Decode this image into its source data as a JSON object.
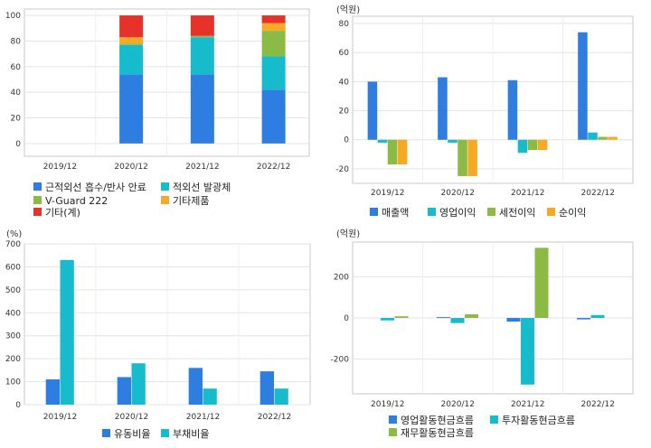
{
  "colors": {
    "blue": "#2e7de0",
    "cyan": "#17bccc",
    "green": "#8bbb45",
    "orange": "#f6a924",
    "red": "#e63228"
  },
  "chart_data": [
    {
      "id": "composition",
      "type": "bar",
      "stacked": true,
      "unit": "",
      "categories": [
        "2019/12",
        "2020/12",
        "2021/12",
        "2022/12"
      ],
      "ylim": [
        -10,
        105
      ],
      "yticks": [
        0,
        20,
        40,
        60,
        80,
        100
      ],
      "grid": true,
      "legend": "bottom",
      "series": [
        {
          "name": "근적외선 흡수/반사 안료",
          "color": "blue",
          "values": [
            0,
            54,
            54,
            42
          ]
        },
        {
          "name": "적외선 발광체",
          "color": "cyan",
          "values": [
            0,
            23,
            29,
            26
          ]
        },
        {
          "name": "V-Guard 222",
          "color": "green",
          "values": [
            0,
            1,
            1,
            20
          ]
        },
        {
          "name": "기타제품",
          "color": "orange",
          "values": [
            0,
            5,
            0,
            6
          ]
        },
        {
          "name": "기타(계)",
          "color": "red",
          "values": [
            0,
            17,
            16,
            6
          ]
        }
      ]
    },
    {
      "id": "income",
      "type": "bar",
      "unit": "(억원)",
      "categories": [
        "2019/12",
        "2020/12",
        "2021/12",
        "2022/12"
      ],
      "ylim": [
        -30,
        85
      ],
      "yticks": [
        -20,
        0,
        20,
        40,
        60,
        80
      ],
      "grid": true,
      "legend": "bottom",
      "series": [
        {
          "name": "매출액",
          "color": "blue",
          "values": [
            40,
            43,
            41,
            74
          ]
        },
        {
          "name": "영업이익",
          "color": "cyan",
          "values": [
            -2,
            -2,
            -9,
            5
          ]
        },
        {
          "name": "세전이익",
          "color": "green",
          "values": [
            -17,
            -25,
            -7,
            2
          ]
        },
        {
          "name": "순이익",
          "color": "orange",
          "values": [
            -17,
            -25,
            -7,
            2
          ]
        }
      ]
    },
    {
      "id": "ratios",
      "type": "bar",
      "unit": "(%)",
      "categories": [
        "2019/12",
        "2020/12",
        "2021/12",
        "2022/12"
      ],
      "ylim": [
        0,
        700
      ],
      "yticks": [
        0,
        100,
        200,
        300,
        400,
        500,
        600,
        700
      ],
      "grid": true,
      "legend": "bottom",
      "series": [
        {
          "name": "유동비율",
          "color": "blue",
          "values": [
            110,
            120,
            160,
            145
          ]
        },
        {
          "name": "부채비율",
          "color": "cyan",
          "values": [
            630,
            180,
            70,
            70
          ]
        }
      ]
    },
    {
      "id": "cashflow",
      "type": "bar",
      "unit": "(억원)",
      "categories": [
        "2019/12",
        "2020/12",
        "2021/12",
        "2022/12"
      ],
      "ylim": [
        -370,
        370
      ],
      "yticks": [
        -200,
        0,
        200
      ],
      "grid": true,
      "legend": "bottom",
      "series": [
        {
          "name": "영업활동현금흐름",
          "color": "blue",
          "values": [
            0,
            4,
            -18,
            -7
          ]
        },
        {
          "name": "투자활동현금흐름",
          "color": "cyan",
          "values": [
            -12,
            -25,
            -325,
            14
          ]
        },
        {
          "name": "재무활동현금흐름",
          "color": "green",
          "values": [
            8,
            18,
            342,
            0
          ]
        }
      ]
    }
  ]
}
